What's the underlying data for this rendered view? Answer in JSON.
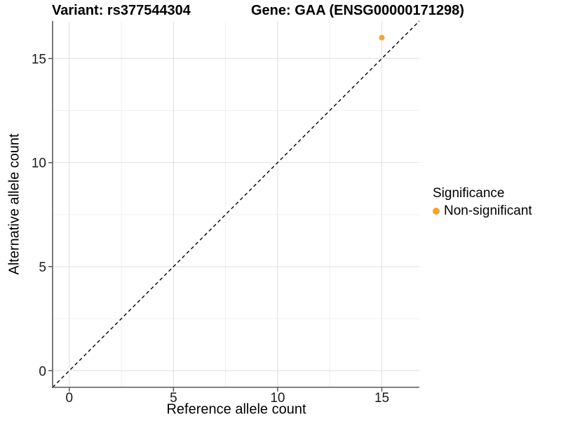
{
  "chart_data": {
    "type": "scatter",
    "title_left": "Variant: rs377544304",
    "title_right": "Gene: GAA (ENSG00000171298)",
    "xlabel": "Reference allele count",
    "ylabel": "Alternative allele count",
    "xlim": [
      -0.8,
      16.8
    ],
    "ylim": [
      -0.8,
      16.8
    ],
    "x_breaks": [
      0,
      5,
      10,
      15
    ],
    "y_breaks": [
      0,
      5,
      10,
      15
    ],
    "x_minor_breaks": [
      2.5,
      7.5,
      12.5
    ],
    "y_minor_breaks": [
      2.5,
      7.5,
      12.5
    ],
    "x_tick_labels": [
      "0",
      "5",
      "10",
      "15"
    ],
    "y_tick_labels": [
      "0",
      "5",
      "10",
      "15"
    ],
    "grid": "major+minor",
    "reference_line": {
      "style": "dashed",
      "equation": "y = x",
      "color": "#000000"
    },
    "series": [
      {
        "name": "Non-significant",
        "color": "#F9A22B",
        "points": [
          {
            "x": 15,
            "y": 16
          }
        ]
      }
    ],
    "legend": {
      "title": "Significance",
      "position": "right",
      "entries": [
        {
          "label": "Non-significant",
          "color": "#F9A22B"
        }
      ]
    }
  },
  "styles": {
    "background": "#ffffff",
    "point_color": "#F9A22B",
    "grid_major_color": "#e3e3e3",
    "grid_minor_color": "#efefef",
    "axis_line_color": "#595959",
    "tick_color": "#4d4d4d",
    "text_color": "#1a1a1a"
  }
}
